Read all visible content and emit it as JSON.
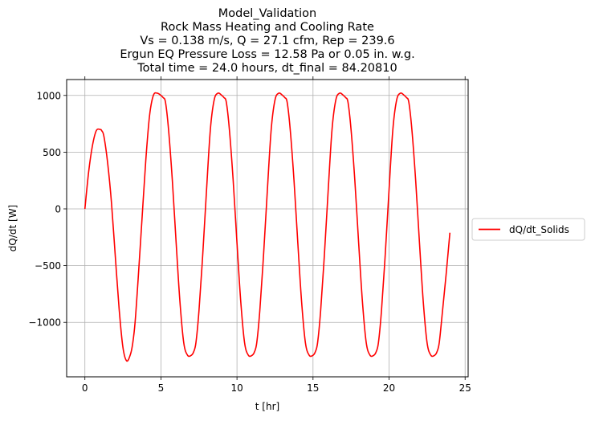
{
  "chart_data": {
    "type": "line",
    "title_lines": [
      "Model_Validation",
      "Rock Mass Heating and Cooling Rate",
      "Vs = 0.138 m/s, Q = 27.1 cfm, Rep = 239.6",
      "Ergun EQ Pressure Loss = 12.58 Pa or 0.05 in. w.g.",
      "Total time = 24.0 hours, dt_final = 84.20810"
    ],
    "xlabel": "t [hr]",
    "ylabel": "dQ/dt [W]",
    "xlim": [
      -1.2,
      25.2
    ],
    "ylim": [
      -1480,
      1140
    ],
    "xticks": [
      0,
      5,
      10,
      15,
      20,
      25
    ],
    "xtick_labels": [
      "0",
      "5",
      "10",
      "15",
      "20",
      "25"
    ],
    "yticks": [
      -1000,
      -500,
      0,
      500,
      1000
    ],
    "ytick_labels": [
      "−1000",
      "−500",
      "0",
      "500",
      "1000"
    ],
    "grid": true,
    "legend_position": "outside-right",
    "series": [
      {
        "name": "dQ/dt_Solids",
        "color": "#ff0000",
        "x": [
          0,
          0.25,
          0.5,
          0.75,
          1.0,
          1.1,
          1.25,
          1.5,
          1.75,
          2.0,
          2.25,
          2.5,
          2.75,
          3.0,
          3.15,
          3.3,
          3.5,
          3.75,
          4.0,
          4.25,
          4.5,
          4.75,
          5.0,
          5.15,
          5.3,
          5.5,
          5.75,
          6.0,
          6.25,
          6.5,
          6.75,
          7.0,
          7.15,
          7.3,
          7.5,
          7.75,
          8.0,
          8.25,
          8.5,
          8.75,
          9.0,
          9.15,
          9.3,
          9.5,
          9.75,
          10.0,
          10.25,
          10.5,
          10.75,
          11.0,
          11.15,
          11.3,
          11.5,
          11.75,
          12.0,
          12.25,
          12.5,
          12.75,
          13.0,
          13.15,
          13.3,
          13.5,
          13.75,
          14.0,
          14.25,
          14.5,
          14.75,
          15.0,
          15.15,
          15.3,
          15.5,
          15.75,
          16.0,
          16.25,
          16.5,
          16.75,
          17.0,
          17.15,
          17.3,
          17.5,
          17.75,
          18.0,
          18.25,
          18.5,
          18.75,
          19.0,
          19.15,
          19.3,
          19.5,
          19.75,
          20.0,
          20.25,
          20.5,
          20.75,
          21.0,
          21.15,
          21.3,
          21.5,
          21.75,
          22.0,
          22.25,
          22.5,
          22.75,
          23.0,
          23.15,
          23.3,
          23.5,
          23.75,
          24.0
        ],
        "y": [
          0,
          330,
          560,
          690,
          700,
          690,
          640,
          400,
          50,
          -420,
          -880,
          -1220,
          -1340,
          -1280,
          -1180,
          -1000,
          -620,
          -100,
          420,
          820,
          1000,
          1020,
          1000,
          980,
          940,
          700,
          250,
          -300,
          -820,
          -1180,
          -1290,
          -1290,
          -1260,
          -1180,
          -900,
          -400,
          170,
          700,
          960,
          1020,
          1000,
          980,
          940,
          700,
          250,
          -300,
          -820,
          -1180,
          -1290,
          -1290,
          -1260,
          -1180,
          -900,
          -400,
          170,
          700,
          960,
          1020,
          1000,
          980,
          940,
          700,
          250,
          -300,
          -820,
          -1180,
          -1290,
          -1290,
          -1260,
          -1180,
          -900,
          -400,
          170,
          700,
          960,
          1020,
          1000,
          980,
          940,
          700,
          250,
          -300,
          -820,
          -1180,
          -1290,
          -1290,
          -1260,
          -1180,
          -900,
          -400,
          170,
          700,
          960,
          1020,
          1000,
          980,
          940,
          700,
          250,
          -300,
          -820,
          -1180,
          -1290,
          -1290,
          -1260,
          -1180,
          -920,
          -580,
          -210
        ]
      }
    ]
  }
}
